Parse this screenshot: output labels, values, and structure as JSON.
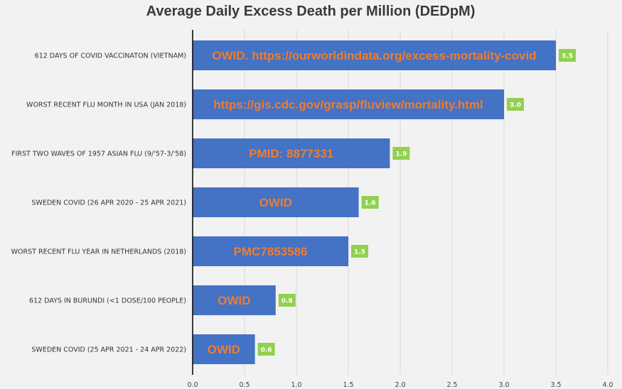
{
  "chart_data": {
    "type": "bar",
    "orientation": "horizontal",
    "title": "Average Daily Excess Death per Million (DEDpM)",
    "xlabel": "",
    "ylabel": "",
    "xlim": [
      0,
      4
    ],
    "ticks": [
      "0.0",
      "0.5",
      "1.0",
      "1.5",
      "2.0",
      "2.5",
      "3.0",
      "3.5",
      "4.0"
    ],
    "grid": true,
    "categories": [
      "612 DAYS OF COVID VACCINATON (VIETNAM)",
      "WORST RECENT FLU MONTH IN USA (JAN 2018)",
      "FIRST TWO WAVES OF 1957 ASIAN FLU (9/'57-3/'58)",
      "SWEDEN COVID (26 APR 2020 - 25 APR 2021)",
      "WORST RECENT FLU YEAR IN NETHERLANDS (2018)",
      "612 DAYS IN BURUNDI (<1 DOSE/100 PEOPLE)",
      "SWEDEN COVID (25 APR 2021 - 24 APR 2022)"
    ],
    "values": [
      3.5,
      3.0,
      1.9,
      1.6,
      1.5,
      0.8,
      0.6
    ],
    "data_labels": [
      "3.5",
      "3.0",
      "1.9",
      "1.6",
      "1.5",
      "0.8",
      "0.6"
    ],
    "annotations": [
      "OWID. https://ourworldindata.org/excess-mortality-covid",
      "https://gis.cdc.gov/grasp/fluview/mortality.html",
      "PMID: 8877331",
      "OWID",
      "PMC7853586",
      "OWID",
      "OWID"
    ],
    "colors": {
      "bar": "#4472c4",
      "annotation_text": "#ed7d31",
      "data_label_bg": "#92d050",
      "grid": "#d9d9d9",
      "axis": "#000000",
      "background": "#f2f2f2"
    }
  }
}
